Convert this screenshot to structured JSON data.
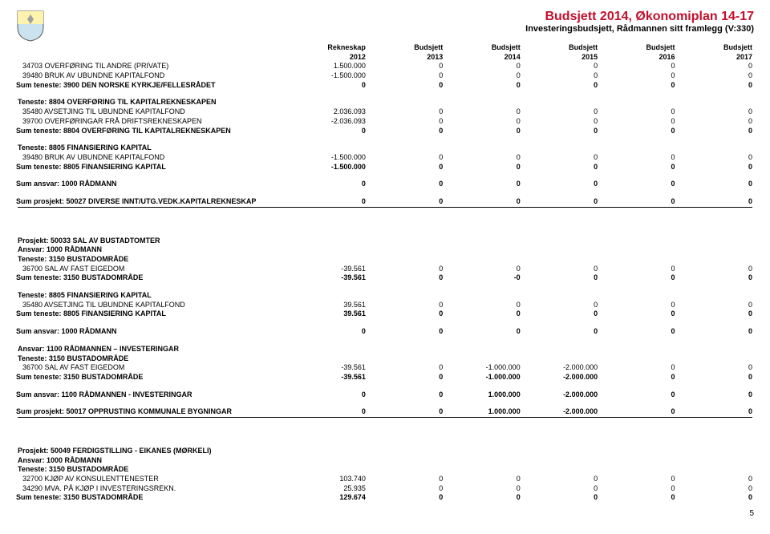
{
  "colors": {
    "title": "#c1102c",
    "text": "#000000",
    "bg": "#ffffff",
    "rule": "#000000",
    "crest_shield_top": "#fef2af",
    "crest_shield_bot": "#cbe3ef"
  },
  "title": "Budsjett 2014, Økonomiplan 14-17",
  "subtitle": "Investeringsbudsjett, Rådmannen sitt framlegg (V:330)",
  "page_number": "5",
  "columns": {
    "h1": {
      "l1": "Rekneskap",
      "l2": "2012"
    },
    "h2": {
      "l1": "Budsjett",
      "l2": "2013"
    },
    "h3": {
      "l1": "Budsjett",
      "l2": "2014"
    },
    "h4": {
      "l1": "Budsjett",
      "l2": "2015"
    },
    "h5": {
      "l1": "Budsjett",
      "l2": "2016"
    },
    "h6": {
      "l1": "Budsjett",
      "l2": "2017"
    }
  },
  "sections": [
    {
      "rows": [
        {
          "label": "34703 OVERFØRING TIL ANDRE (PRIVATE)",
          "v": [
            "1.500.000",
            "0",
            "0",
            "0",
            "0",
            "0"
          ],
          "bold": false
        },
        {
          "label": "39480 BRUK AV UBUNDNE KAPITALFOND",
          "v": [
            "-1.500.000",
            "0",
            "0",
            "0",
            "0",
            "0"
          ],
          "bold": false
        },
        {
          "label": "Sum teneste: 3900 DEN NORSKE KYRKJE/FELLESRÅDET",
          "v": [
            "0",
            "0",
            "0",
            "0",
            "0",
            "0"
          ],
          "bold": true
        }
      ]
    },
    {
      "heading": "Teneste: 8804 OVERFØRING TIL KAPITALREKNESKAPEN",
      "rows": [
        {
          "label": "35480 AVSETJING TIL UBUNDNE KAPITALFOND",
          "v": [
            "2.036.093",
            "0",
            "0",
            "0",
            "0",
            "0"
          ],
          "bold": false
        },
        {
          "label": "39700 OVERFØRINGAR FRÅ DRIFTSREKNESKAPEN",
          "v": [
            "-2.036.093",
            "0",
            "0",
            "0",
            "0",
            "0"
          ],
          "bold": false
        },
        {
          "label": "Sum teneste: 8804 OVERFØRING TIL KAPITALREKNESKAPEN",
          "v": [
            "0",
            "0",
            "0",
            "0",
            "0",
            "0"
          ],
          "bold": true
        }
      ]
    },
    {
      "heading": "Teneste: 8805 FINANSIERING KAPITAL",
      "rows": [
        {
          "label": "39480 BRUK AV UBUNDNE KAPITALFOND",
          "v": [
            "-1.500.000",
            "0",
            "0",
            "0",
            "0",
            "0"
          ],
          "bold": false
        },
        {
          "label": "Sum teneste: 8805 FINANSIERING KAPITAL",
          "v": [
            "-1.500.000",
            "0",
            "0",
            "0",
            "0",
            "0"
          ],
          "bold": true
        }
      ]
    },
    {
      "rows": [
        {
          "label": "Sum ansvar: 1000 RÅDMANN",
          "v": [
            "0",
            "0",
            "0",
            "0",
            "0",
            "0"
          ],
          "bold": true
        }
      ]
    },
    {
      "rows": [
        {
          "label": "Sum prosjekt: 50027 DIVERSE INNT/UTG.VEDK.KAPITALREKNESKAP",
          "v": [
            "0",
            "0",
            "0",
            "0",
            "0",
            "0"
          ],
          "bold": true
        }
      ],
      "hr_after": true
    },
    {
      "big_gap_before": true,
      "heading": "Prosjekt: 50033 SAL AV BUSTADTOMTER",
      "sub1": "Ansvar: 1000 RÅDMANN",
      "sub2": "Teneste: 3150 BUSTADOMRÅDE",
      "rows": [
        {
          "label": "36700 SAL AV FAST EIGEDOM",
          "v": [
            "-39.561",
            "0",
            "0",
            "0",
            "0",
            "0"
          ],
          "bold": false
        },
        {
          "label": "Sum teneste: 3150 BUSTADOMRÅDE",
          "v": [
            "-39.561",
            "0",
            "-0",
            "0",
            "0",
            "0"
          ],
          "bold": true
        }
      ]
    },
    {
      "heading": "Teneste: 8805 FINANSIERING KAPITAL",
      "rows": [
        {
          "label": "35480 AVSETJING TIL UBUNDNE KAPITALFOND",
          "v": [
            "39.561",
            "0",
            "0",
            "0",
            "0",
            "0"
          ],
          "bold": false
        },
        {
          "label": "Sum teneste: 8805 FINANSIERING KAPITAL",
          "v": [
            "39.561",
            "0",
            "0",
            "0",
            "0",
            "0"
          ],
          "bold": true
        }
      ]
    },
    {
      "rows": [
        {
          "label": "Sum ansvar: 1000 RÅDMANN",
          "v": [
            "0",
            "0",
            "0",
            "0",
            "0",
            "0"
          ],
          "bold": true
        }
      ]
    },
    {
      "heading": "Ansvar: 1100 RÅDMANNEN – INVESTERINGAR",
      "sub1": "Teneste: 3150 BUSTADOMRÅDE",
      "rows": [
        {
          "label": "36700 SAL AV FAST EIGEDOM",
          "v": [
            "-39.561",
            "0",
            "-1.000.000",
            "-2.000.000",
            "0",
            "0"
          ],
          "bold": false
        },
        {
          "label": "Sum teneste: 3150 BUSTADOMRÅDE",
          "v": [
            "-39.561",
            "0",
            "-1.000.000",
            "-2.000.000",
            "0",
            "0"
          ],
          "bold": true
        }
      ]
    },
    {
      "rows": [
        {
          "label": "Sum ansvar: 1100 RÅDMANNEN - INVESTERINGAR",
          "v": [
            "0",
            "0",
            "1.000.000",
            "-2.000.000",
            "0",
            "0"
          ],
          "bold": true
        }
      ]
    },
    {
      "rows": [
        {
          "label": "Sum prosjekt: 50017 OPPRUSTING KOMMUNALE BYGNINGAR",
          "v": [
            "0",
            "0",
            "1.000.000",
            "-2.000.000",
            "0",
            "0"
          ],
          "bold": true
        }
      ],
      "hr_after": true
    },
    {
      "big_gap_before": true,
      "heading": "Prosjekt: 50049 FERDIGSTILLING - EIKANES (MØRKELI)",
      "sub1": "Ansvar: 1000 RÅDMANN",
      "sub2": "Teneste: 3150 BUSTADOMRÅDE",
      "rows": [
        {
          "label": "32700 KJØP AV KONSULENTTENESTER",
          "v": [
            "103.740",
            "0",
            "0",
            "0",
            "0",
            "0"
          ],
          "bold": false
        },
        {
          "label": "34290 MVA. PÅ KJØP I INVESTERINGSREKN.",
          "v": [
            "25.935",
            "0",
            "0",
            "0",
            "0",
            "0"
          ],
          "bold": false
        },
        {
          "label": "Sum teneste: 3150 BUSTADOMRÅDE",
          "v": [
            "129.674",
            "0",
            "0",
            "0",
            "0",
            "0"
          ],
          "bold": true
        }
      ]
    }
  ]
}
